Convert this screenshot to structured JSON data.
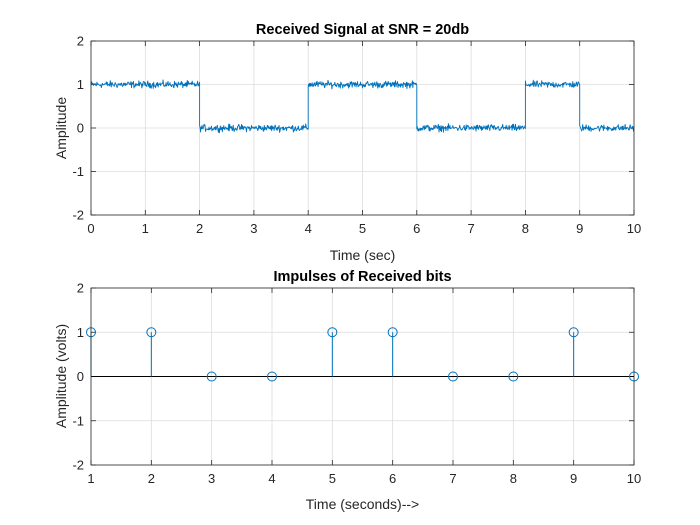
{
  "chart_data": [
    {
      "type": "line",
      "title": "Received Signal at SNR = 20db",
      "xlabel": "Time (sec)",
      "ylabel": "Amplitude",
      "xlim": [
        0,
        10
      ],
      "ylim": [
        -2,
        2
      ],
      "xticks": [
        "0",
        "1",
        "2",
        "3",
        "4",
        "5",
        "6",
        "7",
        "8",
        "9",
        "10"
      ],
      "yticks": [
        "2",
        "1",
        "0",
        "-1",
        "-2"
      ],
      "grid": true,
      "color": "#0072BD",
      "noise_amplitude": 0.06,
      "segments": [
        {
          "x_start": 0,
          "x_end": 2,
          "level": 1
        },
        {
          "x_start": 2,
          "x_end": 4,
          "level": 0
        },
        {
          "x_start": 4,
          "x_end": 6,
          "level": 1
        },
        {
          "x_start": 6,
          "x_end": 8,
          "level": 0
        },
        {
          "x_start": 8,
          "x_end": 9,
          "level": 1
        },
        {
          "x_start": 9,
          "x_end": 10,
          "level": 0
        }
      ]
    },
    {
      "type": "stem",
      "title": "Impulses of Received bits",
      "xlabel": "Time (seconds)-->",
      "ylabel": "Amplitude (volts)",
      "xlim": [
        1,
        10
      ],
      "ylim": [
        -2,
        2
      ],
      "xticks": [
        "1",
        "2",
        "3",
        "4",
        "5",
        "6",
        "7",
        "8",
        "9",
        "10"
      ],
      "yticks": [
        "2",
        "1",
        "0",
        "-1",
        "-2"
      ],
      "grid": true,
      "color": "#0072BD",
      "x": [
        1,
        2,
        3,
        4,
        5,
        6,
        7,
        8,
        9,
        10
      ],
      "values": [
        1,
        1,
        0,
        0,
        1,
        1,
        0,
        0,
        1,
        0
      ]
    }
  ]
}
